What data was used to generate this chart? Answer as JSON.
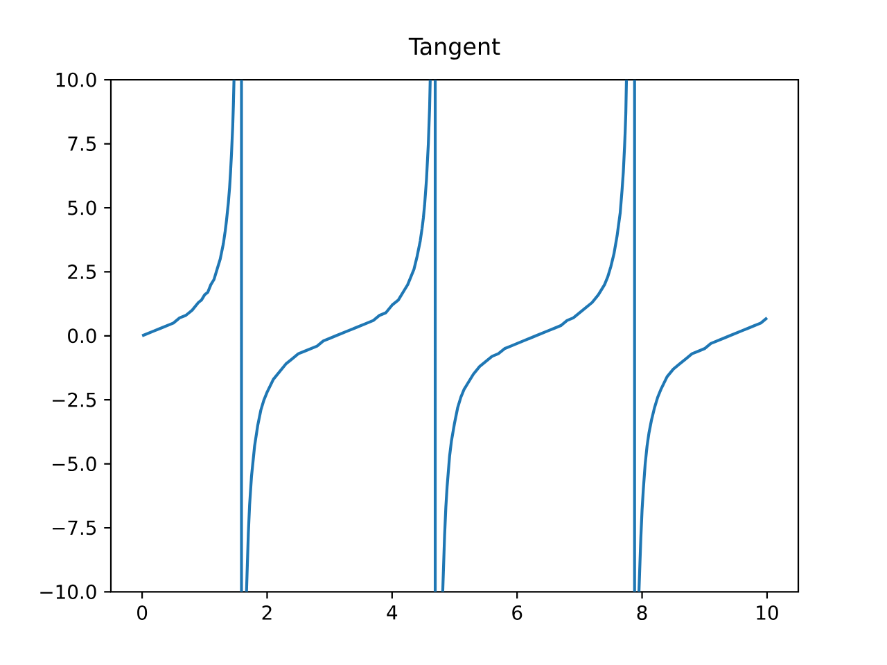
{
  "chart_data": {
    "type": "line",
    "title": "Tangent",
    "x": [
      0,
      0.1,
      0.2,
      0.3,
      0.4,
      0.5,
      0.6,
      0.7,
      0.8,
      0.9,
      0.95,
      1.0,
      1.05,
      1.1,
      1.15,
      1.2,
      1.25,
      1.3,
      1.33,
      1.35,
      1.38,
      1.4,
      1.415,
      1.43,
      1.45,
      1.46,
      1.47,
      1.53,
      1.59,
      1.59,
      1.63,
      1.67,
      1.7,
      1.72,
      1.75,
      1.8,
      1.85,
      1.9,
      1.95,
      2.0,
      2.1,
      2.2,
      2.3,
      2.4,
      2.5,
      2.6,
      2.7,
      2.8,
      2.9,
      3.0,
      3.1,
      3.2,
      3.3,
      3.4,
      3.5,
      3.6,
      3.7,
      3.8,
      3.9,
      4.0,
      4.1,
      4.2,
      4.25,
      4.3,
      4.35,
      4.4,
      4.45,
      4.48,
      4.5,
      4.52,
      4.55,
      4.58,
      4.6,
      4.61,
      4.65,
      4.69,
      4.69,
      4.75,
      4.81,
      4.84,
      4.86,
      4.88,
      4.92,
      4.95,
      5.0,
      5.05,
      5.1,
      5.15,
      5.2,
      5.3,
      5.4,
      5.5,
      5.6,
      5.7,
      5.8,
      5.9,
      6.0,
      6.1,
      6.2,
      6.3,
      6.4,
      6.5,
      6.6,
      6.7,
      6.8,
      6.9,
      7.0,
      7.1,
      7.2,
      7.3,
      7.4,
      7.45,
      7.5,
      7.55,
      7.6,
      7.65,
      7.68,
      7.7,
      7.72,
      7.73,
      7.74,
      7.75,
      7.82,
      7.88,
      7.88,
      7.92,
      7.95,
      7.98,
      8.0,
      8.02,
      8.05,
      8.08,
      8.11,
      8.15,
      8.2,
      8.25,
      8.3,
      8.4,
      8.5,
      8.6,
      8.7,
      8.8,
      8.9,
      9.0,
      9.1,
      9.2,
      9.3,
      9.4,
      9.5,
      9.6,
      9.7,
      9.8,
      9.9,
      10.0
    ],
    "values": [
      0.0,
      0.1,
      0.2,
      0.3,
      0.4,
      0.5,
      0.7,
      0.8,
      1.0,
      1.3,
      1.4,
      1.6,
      1.7,
      2.0,
      2.2,
      2.6,
      3.0,
      3.6,
      4.1,
      4.5,
      5.2,
      5.8,
      6.4,
      7.1,
      8.2,
      9.0,
      10,
      null,
      10,
      -10,
      null,
      -10,
      -7.7,
      -6.6,
      -5.5,
      -4.3,
      -3.5,
      -2.9,
      -2.5,
      -2.2,
      -1.7,
      -1.4,
      -1.1,
      -0.9,
      -0.7,
      -0.6,
      -0.5,
      -0.4,
      -0.2,
      -0.1,
      0.0,
      0.1,
      0.2,
      0.3,
      0.4,
      0.5,
      0.6,
      0.8,
      0.9,
      1.2,
      1.4,
      1.8,
      2.0,
      2.3,
      2.6,
      3.1,
      3.7,
      4.2,
      4.6,
      5.1,
      6.1,
      7.5,
      8.9,
      10,
      null,
      10,
      -10,
      null,
      -10,
      -7.8,
      -6.7,
      -5.9,
      -4.7,
      -4.1,
      -3.4,
      -2.8,
      -2.4,
      -2.1,
      -1.9,
      -1.5,
      -1.2,
      -1.0,
      -0.8,
      -0.7,
      -0.5,
      -0.4,
      -0.3,
      -0.2,
      -0.1,
      0.0,
      0.1,
      0.2,
      0.3,
      0.4,
      0.6,
      0.7,
      0.9,
      1.1,
      1.3,
      1.6,
      2.0,
      2.3,
      2.7,
      3.2,
      3.9,
      4.8,
      5.7,
      6.4,
      7.4,
      8.0,
      8.7,
      10,
      null,
      10,
      -10,
      null,
      -10,
      -7.9,
      -6.8,
      -6.0,
      -5.0,
      -4.3,
      -3.8,
      -3.3,
      -2.8,
      -2.4,
      -2.1,
      -1.6,
      -1.3,
      -1.1,
      -0.9,
      -0.7,
      -0.6,
      -0.5,
      -0.3,
      -0.2,
      -0.1,
      0.0,
      0.1,
      0.2,
      0.3,
      0.4,
      0.5,
      0.7
    ],
    "color": "#1f77b4",
    "marker": "none",
    "line_style": "solid",
    "xlim": [
      -0.5,
      10.5
    ],
    "ylim": [
      -10,
      10
    ],
    "xticks": [
      0,
      2,
      4,
      6,
      8,
      10
    ],
    "yticks": [
      {
        "value": -10,
        "label": "−10.0"
      },
      {
        "value": -7.5,
        "label": "−7.5"
      },
      {
        "value": -5,
        "label": "−5.0"
      },
      {
        "value": -2.5,
        "label": "−2.5"
      },
      {
        "value": 0,
        "label": "0.0"
      },
      {
        "value": 2.5,
        "label": "2.5"
      },
      {
        "value": 5,
        "label": "5.0"
      },
      {
        "value": 7.5,
        "label": "7.5"
      },
      {
        "value": 10,
        "label": "10.0"
      }
    ]
  }
}
